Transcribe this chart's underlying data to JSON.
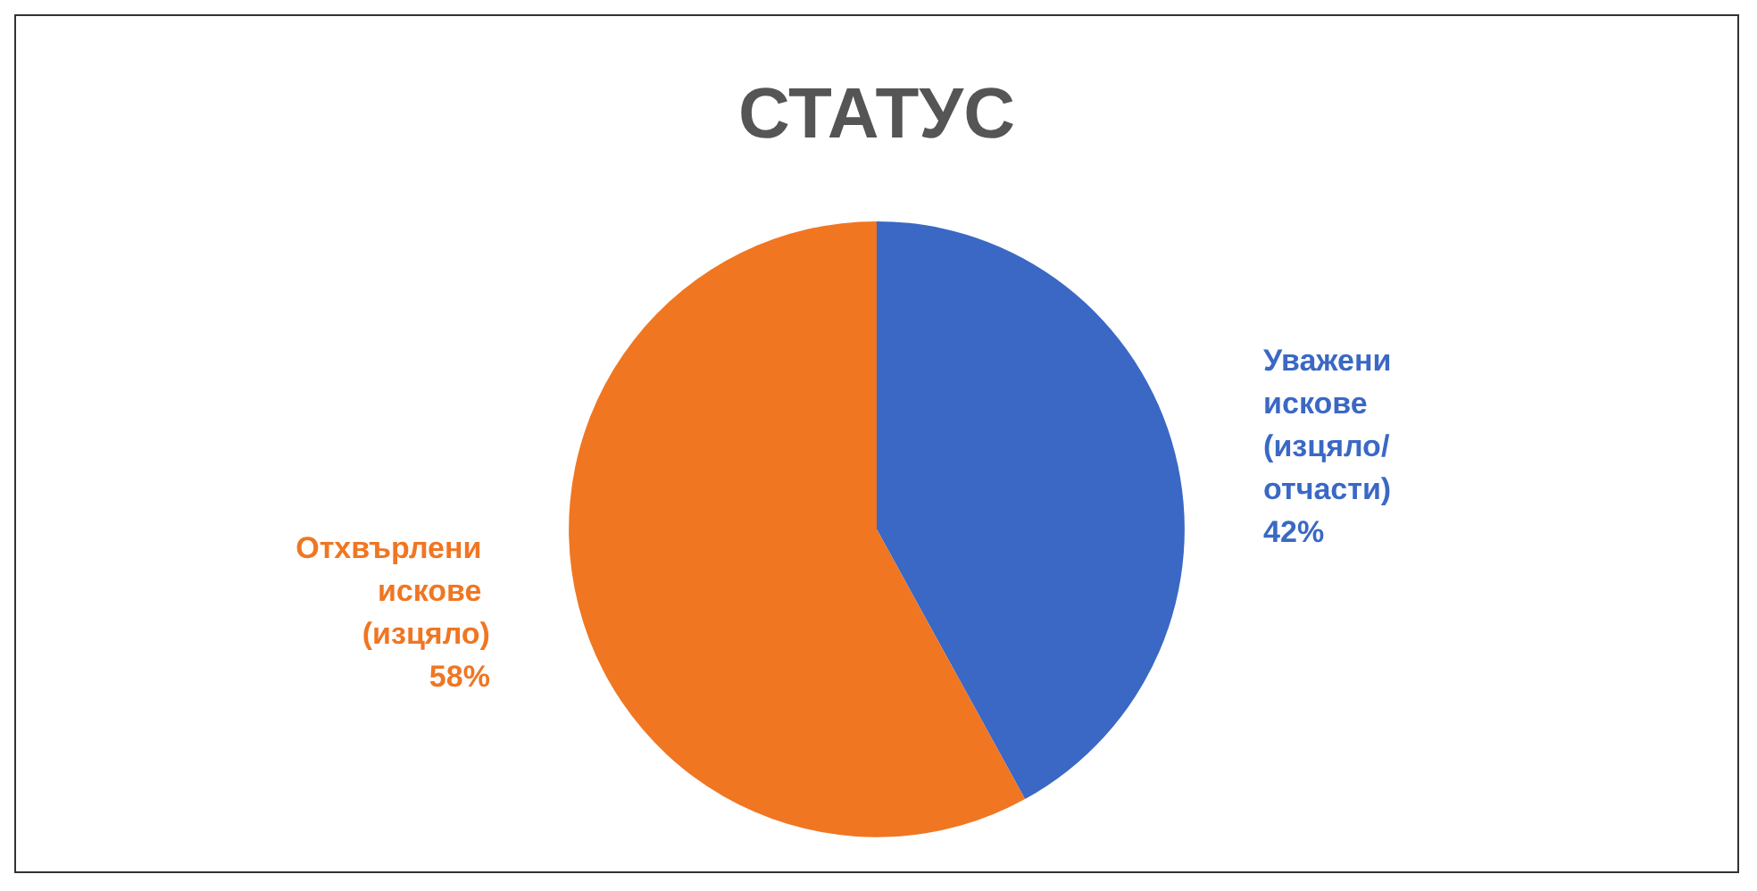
{
  "chart_data": {
    "type": "pie",
    "title": "СТАТУС",
    "categories": [
      "Уважени искове (изцяло/отчасти)",
      "Отхвърлени искове (изцяло)"
    ],
    "values": [
      42,
      58
    ],
    "colors": [
      "#3a68c4",
      "#f07622"
    ],
    "value_labels": [
      "42%",
      "58%"
    ],
    "legend": false
  }
}
